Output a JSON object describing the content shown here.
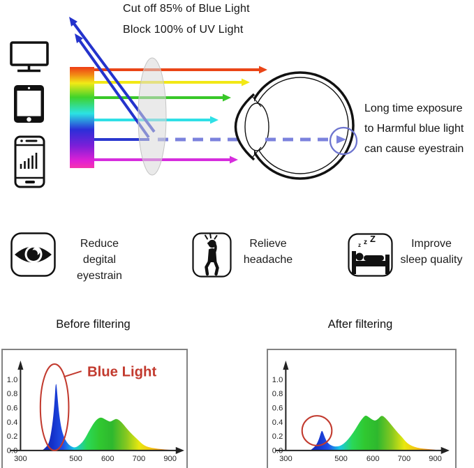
{
  "header": {
    "cutoff_line1": "Cut off 85% of Blue Light",
    "cutoff_line2": "Block 100% of UV Light",
    "exposure_note": "Long time exposure\nto Harmful blue light\ncan cause eyestrain",
    "device_icons": [
      "monitor-icon",
      "tablet-icon",
      "smartphone-icon"
    ],
    "diagram_icons": [
      "light-spectrum-bar",
      "lens",
      "eye",
      "retina-highlight-circle"
    ]
  },
  "benefits": [
    {
      "icon": "eye-icon",
      "label": "Reduce\ndegital eyestrain"
    },
    {
      "icon": "headache-icon",
      "label": "Relieve\nheadache"
    },
    {
      "icon": "sleep-icon",
      "label": "Improve\nsleep quality",
      "zzz": [
        "z",
        "z",
        "Z"
      ]
    }
  ],
  "colors": {
    "ray_red": "#ea4517",
    "ray_yellow": "#f2e816",
    "ray_green": "#38c829",
    "ray_cyan": "#2fe0e6",
    "ray_blue": "#2b38cf",
    "ray_magenta": "#d62ddd",
    "reflected_blue": "#2433cc",
    "dashed_blue": "#7b82dd",
    "retina_circle_blue": "#6d74cf",
    "annotation_red": "#c23a2e"
  },
  "chart_data": [
    {
      "type": "area",
      "title": "Before filtering",
      "annotation": "Blue Light",
      "legend": "none",
      "grid": false,
      "xticks": [
        "300",
        "500",
        "600",
        "700",
        "900"
      ],
      "yticks": [
        "1.0",
        "0.8",
        "0.6",
        "0.4",
        "0.2",
        "0.0"
      ],
      "xlim": [
        300,
        950
      ],
      "ylim": [
        0,
        1.1
      ],
      "points": [
        [
          378,
          0
        ],
        [
          395,
          0.05
        ],
        [
          405,
          0.13
        ],
        [
          415,
          0.35
        ],
        [
          422,
          0.62
        ],
        [
          428,
          1.02
        ],
        [
          434,
          0.75
        ],
        [
          440,
          0.5
        ],
        [
          448,
          0.3
        ],
        [
          458,
          0.18
        ],
        [
          470,
          0.1
        ],
        [
          485,
          0.05
        ],
        [
          500,
          0.04
        ],
        [
          515,
          0.09
        ],
        [
          528,
          0.16
        ],
        [
          542,
          0.28
        ],
        [
          558,
          0.4
        ],
        [
          570,
          0.455
        ],
        [
          580,
          0.47
        ],
        [
          592,
          0.44
        ],
        [
          602,
          0.415
        ],
        [
          609,
          0.405
        ],
        [
          618,
          0.43
        ],
        [
          628,
          0.45
        ],
        [
          640,
          0.42
        ],
        [
          652,
          0.36
        ],
        [
          665,
          0.29
        ],
        [
          680,
          0.22
        ],
        [
          695,
          0.16
        ],
        [
          712,
          0.11
        ],
        [
          735,
          0.07
        ],
        [
          765,
          0.045
        ],
        [
          800,
          0.03
        ],
        [
          845,
          0.018
        ],
        [
          890,
          0.01
        ],
        [
          928,
          0.004
        ]
      ]
    },
    {
      "type": "area",
      "title": "After filtering",
      "annotation": "",
      "legend": "none",
      "grid": false,
      "xticks": [
        "300",
        "500",
        "600",
        "700",
        "900"
      ],
      "yticks": [
        "1.0",
        "0.8",
        "0.6",
        "0.4",
        "0.2",
        "0.0"
      ],
      "xlim": [
        300,
        950
      ],
      "ylim": [
        0,
        1.1
      ],
      "points": [
        [
          388,
          0
        ],
        [
          402,
          0.04
        ],
        [
          412,
          0.09
        ],
        [
          420,
          0.16
        ],
        [
          426,
          0.24
        ],
        [
          431,
          0.29
        ],
        [
          438,
          0.22
        ],
        [
          446,
          0.14
        ],
        [
          456,
          0.09
        ],
        [
          470,
          0.06
        ],
        [
          485,
          0.055
        ],
        [
          500,
          0.07
        ],
        [
          515,
          0.12
        ],
        [
          530,
          0.2
        ],
        [
          545,
          0.3
        ],
        [
          558,
          0.4
        ],
        [
          570,
          0.47
        ],
        [
          578,
          0.5
        ],
        [
          590,
          0.46
        ],
        [
          600,
          0.43
        ],
        [
          608,
          0.42
        ],
        [
          618,
          0.45
        ],
        [
          628,
          0.5
        ],
        [
          640,
          0.46
        ],
        [
          652,
          0.4
        ],
        [
          665,
          0.33
        ],
        [
          680,
          0.25
        ],
        [
          695,
          0.18
        ],
        [
          712,
          0.12
        ],
        [
          735,
          0.08
        ],
        [
          765,
          0.05
        ],
        [
          800,
          0.032
        ],
        [
          845,
          0.02
        ],
        [
          890,
          0.012
        ],
        [
          928,
          0.005
        ]
      ]
    }
  ]
}
